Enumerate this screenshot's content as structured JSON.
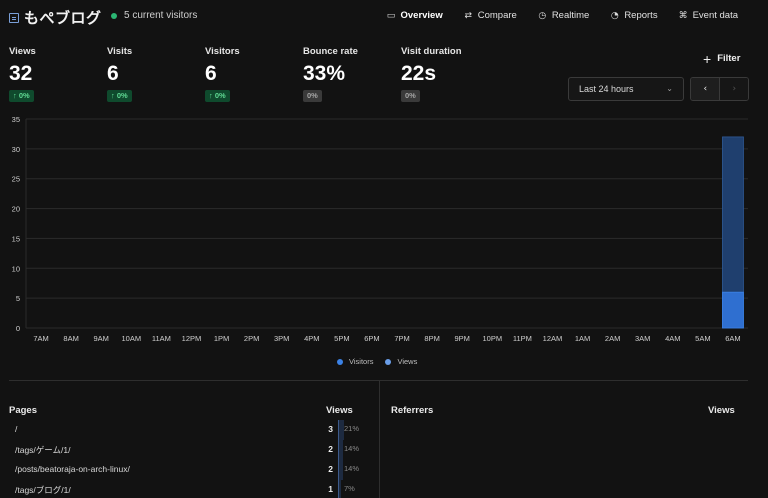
{
  "header": {
    "site_name": "もぺブログ",
    "current_visitors": "5 current visitors"
  },
  "nav": [
    {
      "label": "Overview",
      "icon": "monitor-icon",
      "glyph": "▭",
      "active": true
    },
    {
      "label": "Compare",
      "icon": "arrows-icon",
      "glyph": "⇄",
      "active": false
    },
    {
      "label": "Realtime",
      "icon": "clock-icon",
      "glyph": "◷",
      "active": false
    },
    {
      "label": "Reports",
      "icon": "reports-icon",
      "glyph": "◔",
      "active": false
    },
    {
      "label": "Event data",
      "icon": "event-icon",
      "glyph": "⌘",
      "active": false
    }
  ],
  "metrics": [
    {
      "label": "Views",
      "value": "32",
      "change": "↑ 0%",
      "trend": "up"
    },
    {
      "label": "Visits",
      "value": "6",
      "change": "↑ 0%",
      "trend": "up"
    },
    {
      "label": "Visitors",
      "value": "6",
      "change": "↑ 0%",
      "trend": "up"
    },
    {
      "label": "Bounce rate",
      "value": "33%",
      "change": "0%",
      "trend": "flat"
    },
    {
      "label": "Visit duration",
      "value": "22s",
      "change": "0%",
      "trend": "flat"
    }
  ],
  "controls": {
    "filter_label": "Filter",
    "date_range": "Last 24 hours",
    "prev_glyph": "‹",
    "next_glyph": "›"
  },
  "chart_data": {
    "type": "bar",
    "categories": [
      "7AM",
      "8AM",
      "9AM",
      "10AM",
      "11AM",
      "12PM",
      "1PM",
      "2PM",
      "3PM",
      "4PM",
      "5PM",
      "6PM",
      "7PM",
      "8PM",
      "9PM",
      "10PM",
      "11PM",
      "12AM",
      "1AM",
      "2AM",
      "3AM",
      "4AM",
      "5AM",
      "6AM"
    ],
    "series": [
      {
        "name": "Visitors",
        "values": [
          0,
          0,
          0,
          0,
          0,
          0,
          0,
          0,
          0,
          0,
          0,
          0,
          0,
          0,
          0,
          0,
          0,
          0,
          0,
          0,
          0,
          0,
          0,
          6
        ],
        "color": "#2f6fd0"
      },
      {
        "name": "Views",
        "values": [
          0,
          0,
          0,
          0,
          0,
          0,
          0,
          0,
          0,
          0,
          0,
          0,
          0,
          0,
          0,
          0,
          0,
          0,
          0,
          0,
          0,
          0,
          0,
          32
        ],
        "color": "#1f3f6e"
      }
    ],
    "yticks": [
      0,
      5,
      10,
      15,
      20,
      25,
      30,
      35
    ],
    "ylim": [
      0,
      35
    ],
    "legend": [
      "Visitors",
      "Views"
    ],
    "legend_colors": [
      "#3b82e6",
      "#6a9ee8"
    ],
    "grid": true
  },
  "pages_panel": {
    "title": "Pages",
    "value_header": "Views",
    "rows": [
      {
        "label": "/",
        "value": "3",
        "pct": "21%",
        "pct_num": 21
      },
      {
        "label": "/tags/ゲーム/1/",
        "value": "2",
        "pct": "14%",
        "pct_num": 14
      },
      {
        "label": "/posts/beatoraja-on-arch-linux/",
        "value": "2",
        "pct": "14%",
        "pct_num": 14
      },
      {
        "label": "/tags/ブログ/1/",
        "value": "1",
        "pct": "7%",
        "pct_num": 7
      }
    ]
  },
  "referrers_panel": {
    "title": "Referrers",
    "value_header": "Views"
  }
}
